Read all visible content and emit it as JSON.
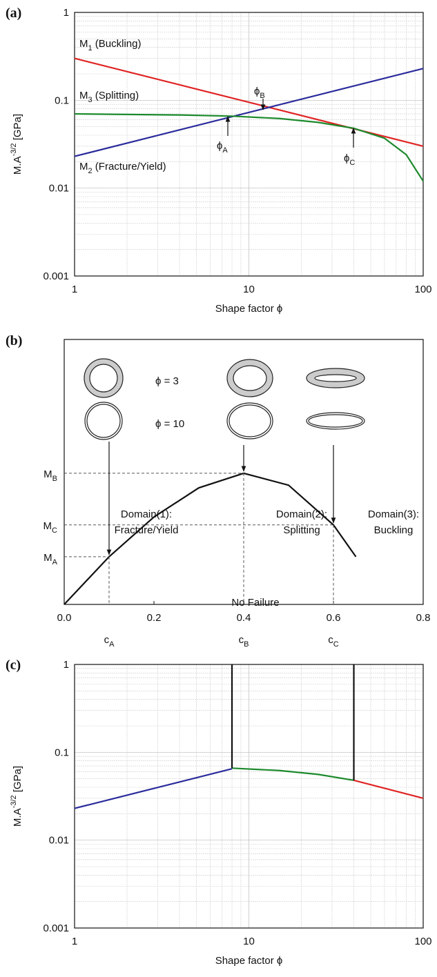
{
  "chart_data": [
    {
      "type": "line",
      "panel": "(a)",
      "log_x": true,
      "log_y": true,
      "grid": true,
      "minor_grid": true,
      "xlim": [
        1,
        100
      ],
      "ylim": [
        0.001,
        1
      ],
      "xticks": [
        1,
        10,
        100
      ],
      "yticks": [
        0.001,
        0.01,
        0.1,
        1
      ],
      "x_label": "Shape factor ϕ",
      "y_label": {
        "main": "M.A",
        "sup": "-3/2",
        "rest": " [GPa]"
      },
      "series": [
        {
          "color": "#e02424",
          "x": [
            1,
            100
          ],
          "values": [
            0.3,
            0.03
          ]
        },
        {
          "color": "#2b2b9c",
          "x": [
            1,
            100
          ],
          "values": [
            0.023,
            0.23
          ]
        },
        {
          "color": "#1c8a2c",
          "x": [
            1,
            2,
            4,
            8,
            15,
            25,
            40,
            60,
            80,
            100
          ],
          "values": [
            0.07,
            0.069,
            0.068,
            0.066,
            0.062,
            0.056,
            0.048,
            0.037,
            0.024,
            0.012
          ]
        }
      ],
      "annotations": [
        {
          "main": "M",
          "sub": "1",
          "rest": " (Buckling)"
        },
        {
          "main": "M",
          "sub": "3",
          "rest": " (Splitting)"
        },
        {
          "main": "M",
          "sub": "2",
          "rest": " (Fracture/Yield)"
        },
        {
          "main": "ϕ",
          "sub": "A"
        },
        {
          "main": "ϕ",
          "sub": "B"
        },
        {
          "main": "ϕ",
          "sub": "C"
        }
      ]
    },
    {
      "type": "line",
      "panel": "(b)",
      "log_x": false,
      "log_y": false,
      "grid": false,
      "xlim": [
        0,
        0.8
      ],
      "ylim": [
        0,
        1
      ],
      "xticks": [
        {
          "value": 0,
          "label": "0.0"
        },
        0.2,
        0.4,
        0.6,
        0.8
      ],
      "yticks": [
        {
          "value": 0.495,
          "label": "M",
          "sub": "B"
        },
        {
          "value": 0.3,
          "label": "M",
          "sub": "C"
        },
        {
          "value": 0.18,
          "label": "M",
          "sub": "A"
        }
      ],
      "series": [
        {
          "color": "#111111",
          "x": [
            0,
            0.1,
            0.2,
            0.3,
            0.4,
            0.5,
            0.6,
            0.65
          ],
          "values": [
            0,
            0.18,
            0.33,
            0.44,
            0.495,
            0.45,
            0.3,
            0.18
          ]
        }
      ],
      "annotations": [
        {
          "main": "c",
          "sub": "A"
        },
        {
          "main": "c",
          "sub": "B"
        },
        {
          "main": "c",
          "sub": "C"
        }
      ],
      "shape_labels": [
        "ϕ =  3",
        "ϕ = 10"
      ]
    },
    {
      "type": "line",
      "panel": "(c)",
      "log_x": true,
      "log_y": true,
      "grid": true,
      "minor_grid": true,
      "xlim": [
        1,
        100
      ],
      "ylim": [
        0.001,
        1
      ],
      "xticks": [
        1,
        10,
        100
      ],
      "yticks": [
        0.001,
        0.01,
        0.1,
        1
      ],
      "x_label": "Shape factor ϕ",
      "y_label": {
        "main": "M.A",
        "sup": "-3/2",
        "rest": " [GPa]"
      },
      "series": [
        {
          "color": "#2b2b9c",
          "x": [
            1,
            8
          ],
          "values": [
            0.023,
            0.065
          ]
        },
        {
          "color": "#1c8a2c",
          "x": [
            8,
            15,
            25,
            40
          ],
          "values": [
            0.066,
            0.062,
            0.056,
            0.048
          ]
        },
        {
          "color": "#e02424",
          "x": [
            40,
            100
          ],
          "values": [
            0.048,
            0.03
          ]
        },
        {
          "color": "#111111",
          "x": [
            8,
            8
          ],
          "values": [
            0.066,
            1
          ]
        },
        {
          "color": "#111111",
          "x": [
            40,
            40
          ],
          "values": [
            0.048,
            1
          ]
        }
      ],
      "annotations": [
        "Domain(1):",
        "Fracture/Yield",
        "Domain(2):",
        "Splitting",
        "Domain(3):",
        "Buckling",
        "No Failure"
      ]
    }
  ]
}
